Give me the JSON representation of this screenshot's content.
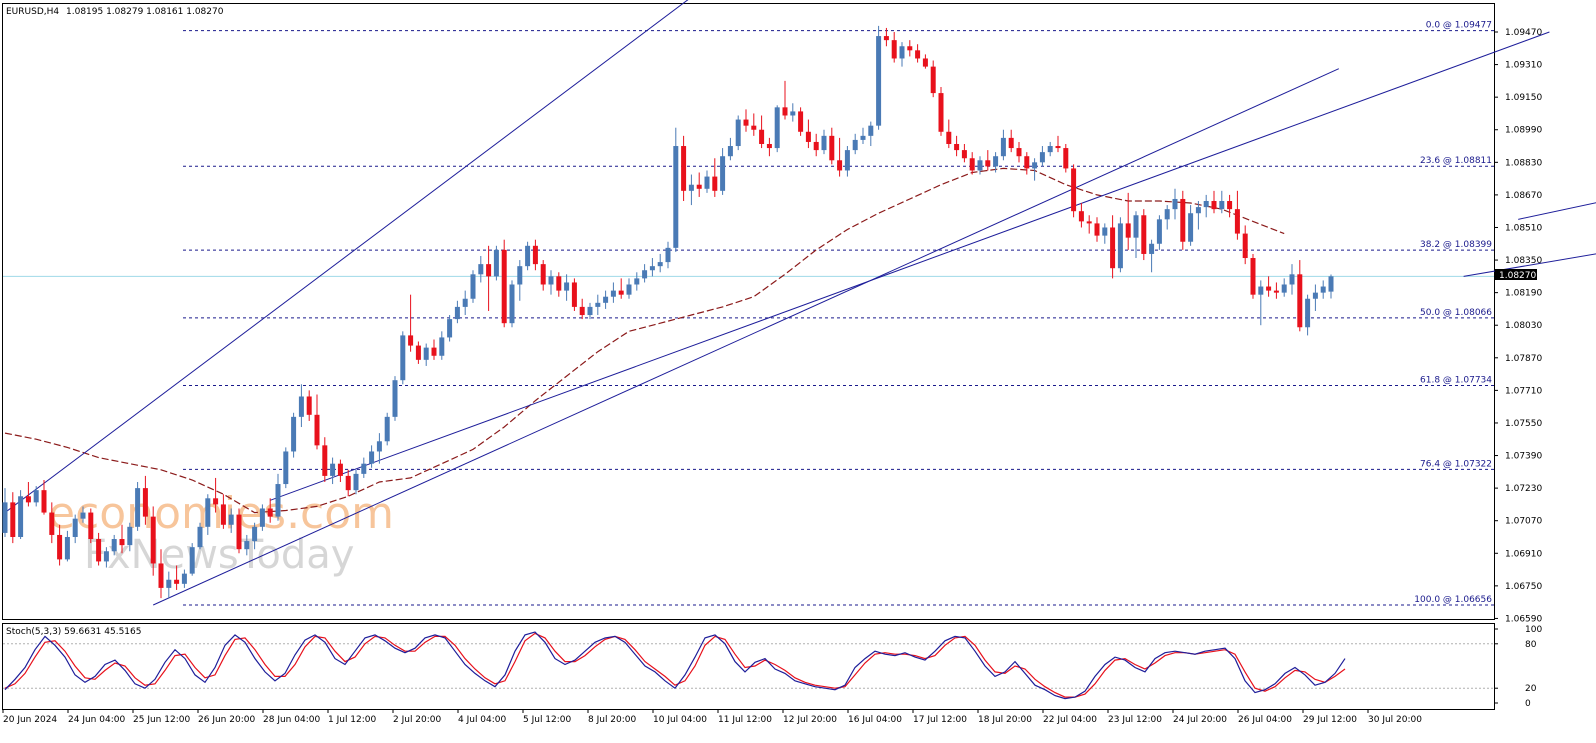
{
  "header": {
    "symbol": "EURUSD,H4",
    "ohlc": "1.08195 1.08279 1.08161 1.08270"
  },
  "watermark": {
    "line1": "economies.com",
    "line2": "FxNewsToday"
  },
  "colors": {
    "bull": "#4a7ab5",
    "bear": "#e8111c",
    "fib": "#1a1a8c",
    "channel": "#1e1e9a",
    "ma": "#8b1a1a",
    "stoch_main": "#1e1e9a",
    "stoch_signal": "#e8111c",
    "price_line": "#9fd9e8"
  },
  "chart_data": {
    "type": "candlestick",
    "y_axis": {
      "range": [
        1.0659,
        1.0953
      ],
      "ticks": [
        "1.09470",
        "1.09310",
        "1.09150",
        "1.08990",
        "1.08830",
        "1.08670",
        "1.08510",
        "1.08350",
        "1.08190",
        "1.08030",
        "1.07870",
        "1.07710",
        "1.07550",
        "1.07390",
        "1.07230",
        "1.07070",
        "1.06910",
        "1.06750",
        "1.06590"
      ]
    },
    "current_price": {
      "value": 1.0827,
      "label": "1.08270"
    },
    "x_axis": {
      "ticks": [
        "20 Jun 2024",
        "24 Jun 04:00",
        "25 Jun 12:00",
        "26 Jun 20:00",
        "28 Jun 04:00",
        "1 Jul 12:00",
        "2 Jul 20:00",
        "4 Jul 04:00",
        "5 Jul 12:00",
        "8 Jul 20:00",
        "10 Jul 04:00",
        "11 Jul 12:00",
        "12 Jul 20:00",
        "16 Jul 04:00",
        "17 Jul 12:00",
        "18 Jul 20:00",
        "22 Jul 04:00",
        "23 Jul 12:00",
        "24 Jul 20:00",
        "26 Jul 04:00",
        "29 Jul 12:00",
        "30 Jul 20:00"
      ]
    },
    "fibonacci": [
      {
        "label": "0.0 @ 1.09477",
        "value": 1.09477
      },
      {
        "label": "23.6 @ 1.08811",
        "value": 1.08811
      },
      {
        "label": "38.2 @ 1.08399",
        "value": 1.08399
      },
      {
        "label": "50.0 @ 1.08066",
        "value": 1.08066
      },
      {
        "label": "61.8 @ 1.07734",
        "value": 1.07734
      },
      {
        "label": "76.4 @ 1.07322",
        "value": 1.07322
      },
      {
        "label": "100.0 @ 1.06656",
        "value": 1.06656
      }
    ],
    "channel_lines": [
      {
        "from": [
          19,
          1.06656
        ],
        "to": [
          171,
          1.0929
        ]
      },
      {
        "from": [
          0,
          1.0711
        ],
        "to": [
          89,
          1.0967
        ]
      },
      {
        "from": [
          34,
          1.0717
        ],
        "to": [
          198,
          1.0947
        ]
      },
      {
        "from": [
          187,
          1.0827
        ],
        "to": [
          227,
          1.0853
        ]
      },
      {
        "from": [
          194,
          1.0855
        ],
        "to": [
          232,
          1.0886
        ]
      }
    ],
    "moving_average": [
      1.075,
      1.0747,
      1.0743,
      1.0738,
      1.0735,
      1.0732,
      1.0727,
      1.072,
      1.0711,
      1.0712,
      1.0714,
      1.0719,
      1.0726,
      1.0728,
      1.0735,
      1.0742,
      1.0753,
      1.0766,
      1.0778,
      1.079,
      1.08,
      1.0804,
      1.0808,
      1.0812,
      1.0817,
      1.0828,
      1.084,
      1.085,
      1.0858,
      1.0865,
      1.0872,
      1.0878,
      1.088,
      1.0879,
      1.0872,
      1.0867,
      1.0864,
      1.0864,
      1.0863,
      1.086,
      1.0854,
      1.0848
    ],
    "candles": [
      [
        1.0701,
        1.0723,
        1.0699,
        1.0716
      ],
      [
        1.0716,
        1.0721,
        1.0696,
        1.0699
      ],
      [
        1.0699,
        1.0722,
        1.0698,
        1.0719
      ],
      [
        1.0719,
        1.0726,
        1.0714,
        1.0716
      ],
      [
        1.0716,
        1.0724,
        1.0714,
        1.0722
      ],
      [
        1.0722,
        1.0727,
        1.071,
        1.0711
      ],
      [
        1.0711,
        1.0716,
        1.0696,
        1.07
      ],
      [
        1.07,
        1.0705,
        1.0685,
        1.0688
      ],
      [
        1.0688,
        1.0702,
        1.0687,
        1.0699
      ],
      [
        1.0699,
        1.071,
        1.0696,
        1.0708
      ],
      [
        1.0708,
        1.0714,
        1.0706,
        1.0711
      ],
      [
        1.0711,
        1.0713,
        1.0696,
        1.0698
      ],
      [
        1.0698,
        1.0701,
        1.0685,
        1.0687
      ],
      [
        1.0687,
        1.0694,
        1.0684,
        1.0692
      ],
      [
        1.0692,
        1.07,
        1.069,
        1.0698
      ],
      [
        1.0698,
        1.0705,
        1.0691,
        1.0695
      ],
      [
        1.0695,
        1.0706,
        1.0692,
        1.0704
      ],
      [
        1.0704,
        1.0726,
        1.0702,
        1.0723
      ],
      [
        1.0723,
        1.0729,
        1.0705,
        1.0709
      ],
      [
        1.0709,
        1.0714,
        1.068,
        1.0686
      ],
      [
        1.0686,
        1.0693,
        1.0669,
        1.0674
      ],
      [
        1.0674,
        1.0682,
        1.0669,
        1.0678
      ],
      [
        1.0678,
        1.0685,
        1.0673,
        1.0676
      ],
      [
        1.0676,
        1.0683,
        1.0674,
        1.0681
      ],
      [
        1.0681,
        1.0696,
        1.068,
        1.0694
      ],
      [
        1.0694,
        1.0706,
        1.0693,
        1.0704
      ],
      [
        1.0704,
        1.072,
        1.07,
        1.0718
      ],
      [
        1.0718,
        1.0728,
        1.0711,
        1.0715
      ],
      [
        1.0715,
        1.072,
        1.0703,
        1.0705
      ],
      [
        1.0705,
        1.0713,
        1.0701,
        1.071
      ],
      [
        1.071,
        1.0713,
        1.0691,
        1.0693
      ],
      [
        1.0693,
        1.07,
        1.069,
        1.0697
      ],
      [
        1.0697,
        1.0706,
        1.0693,
        1.0704
      ],
      [
        1.0704,
        1.0715,
        1.0702,
        1.0713
      ],
      [
        1.0713,
        1.0718,
        1.0706,
        1.0709
      ],
      [
        1.0709,
        1.073,
        1.0707,
        1.0725
      ],
      [
        1.0725,
        1.0743,
        1.0723,
        1.0741
      ],
      [
        1.0741,
        1.076,
        1.0738,
        1.0758
      ],
      [
        1.0758,
        1.0774,
        1.0753,
        1.0768
      ],
      [
        1.0768,
        1.0771,
        1.0756,
        1.0759
      ],
      [
        1.0759,
        1.0769,
        1.0742,
        1.0744
      ],
      [
        1.0744,
        1.0748,
        1.0726,
        1.0729
      ],
      [
        1.0729,
        1.0738,
        1.0725,
        1.0735
      ],
      [
        1.0735,
        1.0737,
        1.0726,
        1.0729
      ],
      [
        1.0729,
        1.0732,
        1.0719,
        1.0722
      ],
      [
        1.0722,
        1.0732,
        1.072,
        1.073
      ],
      [
        1.073,
        1.0738,
        1.0728,
        1.0735
      ],
      [
        1.0735,
        1.0744,
        1.0733,
        1.0741
      ],
      [
        1.0741,
        1.075,
        1.0735,
        1.0746
      ],
      [
        1.0746,
        1.076,
        1.0744,
        1.0758
      ],
      [
        1.0758,
        1.0778,
        1.0756,
        1.0776
      ],
      [
        1.0776,
        1.08,
        1.0774,
        1.0798
      ],
      [
        1.0798,
        1.0818,
        1.079,
        1.0793
      ],
      [
        1.0793,
        1.0795,
        1.0784,
        1.0786
      ],
      [
        1.0786,
        1.0794,
        1.0783,
        1.0792
      ],
      [
        1.0792,
        1.0796,
        1.0786,
        1.0788
      ],
      [
        1.0788,
        1.08,
        1.0786,
        1.0797
      ],
      [
        1.0797,
        1.0808,
        1.0795,
        1.0806
      ],
      [
        1.0806,
        1.0815,
        1.0804,
        1.0812
      ],
      [
        1.0812,
        1.082,
        1.0808,
        1.0816
      ],
      [
        1.0816,
        1.083,
        1.0814,
        1.0828
      ],
      [
        1.0828,
        1.0837,
        1.0824,
        1.0833
      ],
      [
        1.0833,
        1.0842,
        1.081,
        1.0827
      ],
      [
        1.0827,
        1.0842,
        1.0825,
        1.084
      ],
      [
        1.084,
        1.0845,
        1.0802,
        1.0804
      ],
      [
        1.0804,
        1.0825,
        1.0802,
        1.0823
      ],
      [
        1.0823,
        1.0835,
        1.0815,
        1.0832
      ],
      [
        1.0832,
        1.0844,
        1.083,
        1.0842
      ],
      [
        1.0842,
        1.0845,
        1.083,
        1.0833
      ],
      [
        1.0833,
        1.0835,
        1.082,
        1.0823
      ],
      [
        1.0823,
        1.083,
        1.0818,
        1.0827
      ],
      [
        1.0827,
        1.0829,
        1.0817,
        1.082
      ],
      [
        1.082,
        1.0828,
        1.0815,
        1.0824
      ],
      [
        1.0824,
        1.0826,
        1.081,
        1.0812
      ],
      [
        1.0812,
        1.0816,
        1.0806,
        1.0808
      ],
      [
        1.0808,
        1.0814,
        1.0806,
        1.0812
      ],
      [
        1.0812,
        1.0818,
        1.0808,
        1.0814
      ],
      [
        1.0814,
        1.082,
        1.0811,
        1.0817
      ],
      [
        1.0817,
        1.0824,
        1.0814,
        1.082
      ],
      [
        1.082,
        1.0826,
        1.0816,
        1.0818
      ],
      [
        1.0818,
        1.0826,
        1.0816,
        1.0823
      ],
      [
        1.0823,
        1.0829,
        1.082,
        1.0826
      ],
      [
        1.0826,
        1.0833,
        1.0824,
        1.083
      ],
      [
        1.083,
        1.0836,
        1.0827,
        1.0832
      ],
      [
        1.0832,
        1.0838,
        1.0829,
        1.0834
      ],
      [
        1.0834,
        1.0844,
        1.0831,
        1.0841
      ],
      [
        1.0841,
        1.09,
        1.0839,
        1.0891
      ],
      [
        1.0891,
        1.0896,
        1.0864,
        1.0869
      ],
      [
        1.0869,
        1.0877,
        1.0862,
        1.0872
      ],
      [
        1.0872,
        1.0878,
        1.0866,
        1.087
      ],
      [
        1.087,
        1.0879,
        1.0868,
        1.0876
      ],
      [
        1.0876,
        1.0885,
        1.0866,
        1.0869
      ],
      [
        1.0869,
        1.089,
        1.0867,
        1.0886
      ],
      [
        1.0886,
        1.0895,
        1.0884,
        1.0891
      ],
      [
        1.0891,
        1.0906,
        1.0889,
        1.0904
      ],
      [
        1.0904,
        1.0909,
        1.0898,
        1.0901
      ],
      [
        1.0901,
        1.0907,
        1.0896,
        1.0899
      ],
      [
        1.0899,
        1.0906,
        1.089,
        1.0892
      ],
      [
        1.0892,
        1.0895,
        1.0886,
        1.089
      ],
      [
        1.089,
        1.0911,
        1.0888,
        1.091
      ],
      [
        1.091,
        1.0923,
        1.0904,
        1.0906
      ],
      [
        1.0906,
        1.0912,
        1.0903,
        1.0908
      ],
      [
        1.0908,
        1.091,
        1.0896,
        1.0898
      ],
      [
        1.0898,
        1.0904,
        1.089,
        1.0893
      ],
      [
        1.0893,
        1.0897,
        1.0886,
        1.0889
      ],
      [
        1.0889,
        1.0899,
        1.0887,
        1.0896
      ],
      [
        1.0896,
        1.09,
        1.0882,
        1.0884
      ],
      [
        1.0884,
        1.0895,
        1.0876,
        1.0879
      ],
      [
        1.0879,
        1.0891,
        1.0876,
        1.0889
      ],
      [
        1.0889,
        1.0897,
        1.0887,
        1.0894
      ],
      [
        1.0894,
        1.09,
        1.0892,
        1.0896
      ],
      [
        1.0896,
        1.0903,
        1.0891,
        1.0901
      ],
      [
        1.0901,
        1.095,
        1.0899,
        1.0945
      ],
      [
        1.0945,
        1.0949,
        1.094,
        1.0943
      ],
      [
        1.0943,
        1.0947,
        1.0932,
        1.0934
      ],
      [
        1.0934,
        1.0942,
        1.093,
        1.094
      ],
      [
        1.094,
        1.0943,
        1.0935,
        1.0938
      ],
      [
        1.0938,
        1.0941,
        1.0932,
        1.0934
      ],
      [
        1.0934,
        1.0936,
        1.0929,
        1.093
      ],
      [
        1.093,
        1.0933,
        1.0915,
        1.0917
      ],
      [
        1.0917,
        1.092,
        1.0896,
        1.0898
      ],
      [
        1.0898,
        1.0904,
        1.089,
        1.0892
      ],
      [
        1.0892,
        1.0896,
        1.0886,
        1.0889
      ],
      [
        1.0889,
        1.0892,
        1.0883,
        1.0885
      ],
      [
        1.0885,
        1.0888,
        1.0877,
        1.0879
      ],
      [
        1.0879,
        1.0886,
        1.0877,
        1.0884
      ],
      [
        1.0884,
        1.0889,
        1.0879,
        1.0881
      ],
      [
        1.0881,
        1.0888,
        1.0878,
        1.0886
      ],
      [
        1.0886,
        1.0899,
        1.0884,
        1.0895
      ],
      [
        1.0895,
        1.0899,
        1.0888,
        1.089
      ],
      [
        1.089,
        1.0893,
        1.0883,
        1.0886
      ],
      [
        1.0886,
        1.0888,
        1.0877,
        1.088
      ],
      [
        1.088,
        1.0885,
        1.0874,
        1.0883
      ],
      [
        1.0883,
        1.0891,
        1.0881,
        1.0888
      ],
      [
        1.0888,
        1.0893,
        1.0886,
        1.0891
      ],
      [
        1.0891,
        1.0896,
        1.0888,
        1.089
      ],
      [
        1.089,
        1.0892,
        1.0878,
        1.088
      ],
      [
        1.088,
        1.0882,
        1.0856,
        1.0859
      ],
      [
        1.0859,
        1.0863,
        1.0851,
        1.0854
      ],
      [
        1.0854,
        1.0857,
        1.0848,
        1.0853
      ],
      [
        1.0853,
        1.0856,
        1.0844,
        1.0847
      ],
      [
        1.0847,
        1.0853,
        1.0843,
        1.0851
      ],
      [
        1.0851,
        1.0857,
        1.0826,
        1.0831
      ],
      [
        1.0831,
        1.0856,
        1.0829,
        1.0853
      ],
      [
        1.0853,
        1.0868,
        1.084,
        1.0846
      ],
      [
        1.0846,
        1.0859,
        1.0836,
        1.0857
      ],
      [
        1.0857,
        1.086,
        1.0835,
        1.0838
      ],
      [
        1.0838,
        1.0845,
        1.0829,
        1.0843
      ],
      [
        1.0843,
        1.0857,
        1.084,
        1.0855
      ],
      [
        1.0855,
        1.0862,
        1.085,
        1.086
      ],
      [
        1.086,
        1.087,
        1.0855,
        1.0865
      ],
      [
        1.0865,
        1.0869,
        1.084,
        1.0844
      ],
      [
        1.0844,
        1.0862,
        1.0842,
        1.0858
      ],
      [
        1.0858,
        1.0864,
        1.085,
        1.0861
      ],
      [
        1.0861,
        1.0867,
        1.0856,
        1.0864
      ],
      [
        1.0864,
        1.0869,
        1.0858,
        1.086
      ],
      [
        1.086,
        1.0869,
        1.0858,
        1.0864
      ],
      [
        1.0864,
        1.0867,
        1.0856,
        1.086
      ],
      [
        1.086,
        1.0869,
        1.0845,
        1.0848
      ],
      [
        1.0848,
        1.0852,
        1.0833,
        1.0836
      ],
      [
        1.0836,
        1.0838,
        1.0816,
        1.0818
      ],
      [
        1.0818,
        1.0825,
        1.0803,
        1.0822
      ],
      [
        1.0822,
        1.0827,
        1.0817,
        1.082
      ],
      [
        1.082,
        1.0824,
        1.0816,
        1.0819
      ],
      [
        1.0819,
        1.0826,
        1.0817,
        1.0823
      ],
      [
        1.0823,
        1.0833,
        1.0818,
        1.0828
      ],
      [
        1.0828,
        1.0835,
        1.08,
        1.0802
      ],
      [
        1.0802,
        1.0818,
        1.0798,
        1.0816
      ],
      [
        1.0816,
        1.0823,
        1.081,
        1.0819
      ],
      [
        1.0819,
        1.0825,
        1.0816,
        1.0822
      ],
      [
        1.08195,
        1.08279,
        1.08161,
        1.0827
      ]
    ]
  },
  "stochastic": {
    "label": "Stoch(5,3,3) 59.6631 45.5165",
    "ticks": [
      "100",
      "80",
      "20",
      "0"
    ],
    "main": [
      18,
      32,
      48,
      72,
      90,
      78,
      62,
      38,
      28,
      36,
      52,
      58,
      44,
      26,
      20,
      32,
      55,
      72,
      60,
      38,
      28,
      48,
      78,
      92,
      82,
      60,
      42,
      30,
      40,
      65,
      85,
      92,
      82,
      60,
      52,
      70,
      88,
      92,
      84,
      74,
      68,
      74,
      88,
      92,
      88,
      70,
      52,
      40,
      30,
      22,
      38,
      70,
      92,
      96,
      82,
      60,
      52,
      58,
      70,
      82,
      88,
      90,
      82,
      66,
      50,
      42,
      30,
      20,
      38,
      62,
      88,
      92,
      80,
      56,
      42,
      55,
      60,
      46,
      40,
      30,
      26,
      22,
      20,
      18,
      24,
      48,
      60,
      70,
      66,
      64,
      68,
      62,
      58,
      70,
      84,
      90,
      88,
      70,
      50,
      36,
      42,
      56,
      40,
      24,
      18,
      10,
      6,
      8,
      16,
      36,
      52,
      62,
      58,
      48,
      42,
      60,
      68,
      70,
      68,
      66,
      70,
      72,
      74,
      60,
      30,
      14,
      18,
      26,
      40,
      48,
      38,
      24,
      28,
      40,
      60
    ],
    "signal": [
      20,
      26,
      40,
      62,
      82,
      84,
      70,
      50,
      34,
      32,
      44,
      54,
      50,
      34,
      24,
      26,
      44,
      64,
      66,
      48,
      34,
      38,
      64,
      86,
      88,
      72,
      52,
      36,
      36,
      52,
      76,
      90,
      88,
      70,
      56,
      62,
      80,
      90,
      88,
      78,
      70,
      70,
      82,
      90,
      90,
      78,
      60,
      46,
      34,
      26,
      30,
      56,
      84,
      94,
      88,
      70,
      56,
      56,
      64,
      76,
      86,
      90,
      86,
      72,
      56,
      46,
      36,
      24,
      30,
      50,
      78,
      90,
      86,
      66,
      48,
      50,
      58,
      52,
      44,
      34,
      28,
      24,
      22,
      20,
      22,
      38,
      54,
      66,
      68,
      66,
      66,
      64,
      60,
      64,
      78,
      88,
      90,
      78,
      58,
      42,
      40,
      50,
      46,
      32,
      22,
      14,
      8,
      8,
      12,
      26,
      44,
      58,
      60,
      52,
      46,
      54,
      64,
      68,
      68,
      66,
      68,
      70,
      72,
      66,
      42,
      20,
      16,
      22,
      34,
      44,
      42,
      32,
      28,
      36,
      46
    ]
  }
}
